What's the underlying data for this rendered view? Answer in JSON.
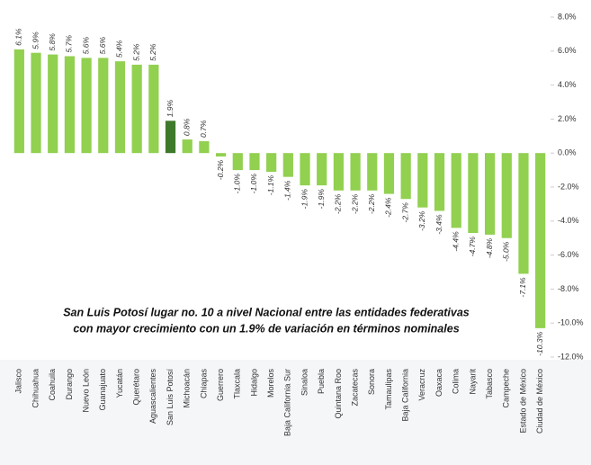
{
  "chart_data": {
    "type": "bar",
    "annotation": [
      "San Luis Potosí lugar no. 10 a nivel Nacional entre las entidades federativas",
      "con mayor crecimiento con un 1.9% de variación en términos nominales"
    ],
    "categories": [
      "Jalisco",
      "Chihuahua",
      "Coahuila",
      "Durango",
      "Nuevo León",
      "Guanajuato",
      "Yucatán",
      "Querétaro",
      "Aguascalientes",
      "San Luis Potosí",
      "Michoacán",
      "Chiapas",
      "Guerrero",
      "Tlaxcala",
      "Hidalgo",
      "Morelos",
      "Baja California Sur",
      "Sinaloa",
      "Puebla",
      "Quintana Roo",
      "Zacatecas",
      "Sonora",
      "Tamaulipas",
      "Baja California",
      "Veracruz",
      "Oaxaca",
      "Colima",
      "Nayarit",
      "Tabasco",
      "Campeche",
      "Estado de México",
      "Ciudad de México"
    ],
    "values": [
      6.1,
      5.9,
      5.8,
      5.7,
      5.6,
      5.6,
      5.4,
      5.2,
      5.2,
      1.9,
      0.8,
      0.7,
      -0.2,
      -1.0,
      -1.0,
      -1.1,
      -1.4,
      -1.9,
      -1.9,
      -2.2,
      -2.2,
      -2.2,
      -2.4,
      -2.7,
      -3.2,
      -3.4,
      -4.4,
      -4.7,
      -4.8,
      -5.0,
      -7.1,
      -10.3
    ],
    "value_labels": [
      "6.1%",
      "5.9%",
      "5.8%",
      "5.7%",
      "5.6%",
      "5.6%",
      "5.4%",
      "5.2%",
      "5.2%",
      "1.9%",
      "0.8%",
      "0.7%",
      "-0.2%",
      "-1.0%",
      "-1.0%",
      "-1.1%",
      "-1.4%",
      "-1.9%",
      "-1.9%",
      "-2.2%",
      "-2.2%",
      "-2.2%",
      "-2.4%",
      "-2.7%",
      "-3.2%",
      "-3.4%",
      "-4.4%",
      "-4.7%",
      "-4.8%",
      "-5.0%",
      "-7.1%",
      "-10.3%"
    ],
    "colors": [
      "#92d050",
      "#92d050",
      "#92d050",
      "#92d050",
      "#92d050",
      "#92d050",
      "#92d050",
      "#92d050",
      "#92d050",
      "#3f7a2c",
      "#92d050",
      "#92d050",
      "#92d050",
      "#92d050",
      "#92d050",
      "#92d050",
      "#92d050",
      "#92d050",
      "#92d050",
      "#92d050",
      "#92d050",
      "#92d050",
      "#92d050",
      "#92d050",
      "#92d050",
      "#92d050",
      "#92d050",
      "#92d050",
      "#92d050",
      "#92d050",
      "#92d050",
      "#92d050"
    ],
    "ylim": [
      -12,
      8
    ],
    "yticks": [
      {
        "value": 8,
        "label": "8.0%"
      },
      {
        "value": 6,
        "label": "6.0%"
      },
      {
        "value": 4,
        "label": "4.0%"
      },
      {
        "value": 2,
        "label": "2.0%"
      },
      {
        "value": 0,
        "label": "0.0%"
      },
      {
        "value": -2,
        "label": "-2.0%"
      },
      {
        "value": -4,
        "label": "-4.0%"
      },
      {
        "value": -6,
        "label": "-6.0%"
      },
      {
        "value": -8,
        "label": "-8.0%"
      },
      {
        "value": -10,
        "label": "-10.0%"
      },
      {
        "value": -12,
        "label": "-12.0%"
      }
    ],
    "yaxis_side": "right",
    "grid": false
  }
}
